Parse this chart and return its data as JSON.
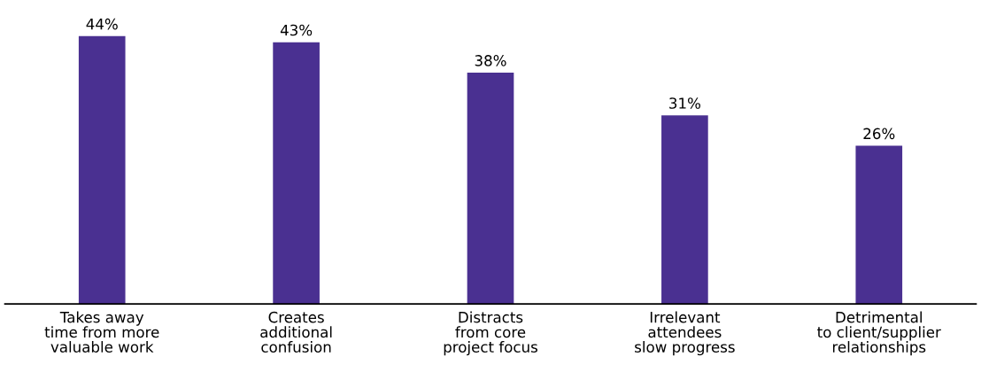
{
  "chart_data": {
    "type": "bar",
    "categories": [
      "Takes away\ntime from more\nvaluable work",
      "Creates\nadditional\nconfusion",
      "Distracts\nfrom core\nproject focus",
      "Irrelevant\nattendees\nslow progress",
      "Detrimental\nto client/supplier\nrelationships"
    ],
    "values": [
      44,
      43,
      38,
      31,
      26
    ],
    "value_labels": [
      "44%",
      "43%",
      "38%",
      "31%",
      "26%"
    ],
    "color": "#4a3091",
    "grid": false,
    "legend": false
  }
}
